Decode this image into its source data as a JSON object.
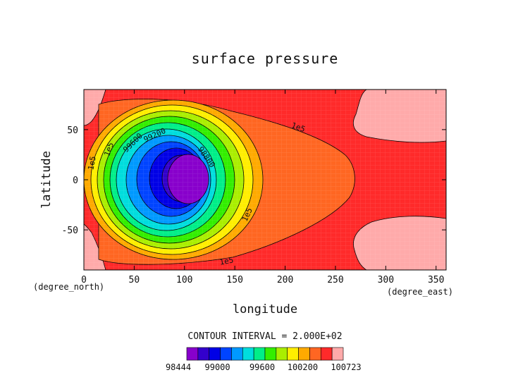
{
  "chart_data": {
    "type": "contour",
    "title": "surface pressure",
    "xlabel": "longitude",
    "ylabel": "latitude",
    "x_unit": "(degree_east)",
    "y_unit": "(degree_north)",
    "xlim": [
      0,
      360
    ],
    "ylim": [
      -90,
      90
    ],
    "x_ticks": [
      0,
      50,
      100,
      150,
      200,
      250,
      300,
      350
    ],
    "y_ticks": [
      -50,
      0,
      50
    ],
    "contour_interval_label": "CONTOUR INTERVAL = 2.000E+02",
    "field": {
      "min": 98444,
      "max": 100723,
      "min_center": {
        "lon": 105,
        "lat": 0
      },
      "interval": 200
    },
    "colorbar": {
      "levels": [
        98444,
        98600,
        98800,
        99000,
        99200,
        99400,
        99600,
        99800,
        100000,
        100200,
        100400,
        100600,
        100723
      ],
      "colors": [
        "#8800cc",
        "#3300cc",
        "#0000e6",
        "#0044ff",
        "#0099ff",
        "#00dddd",
        "#00ee88",
        "#33ee00",
        "#aaee00",
        "#ffee00",
        "#ffaa00",
        "#ff6622",
        "#ff2a2a",
        "#ffaaaa"
      ],
      "tick_labels": [
        "98444",
        "99000",
        "99600",
        "100200",
        "100723"
      ]
    },
    "contour_labels": [
      "1e5",
      "1e5",
      "1e5",
      "1e5",
      "1e5",
      "99600",
      "99200",
      "98800"
    ]
  }
}
